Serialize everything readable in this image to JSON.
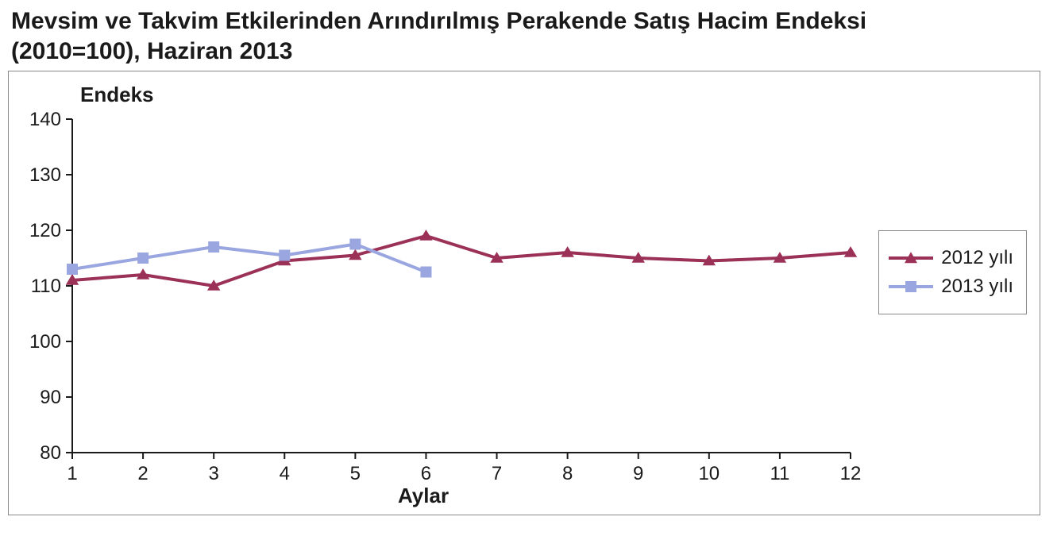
{
  "title_line1": "Mevsim ve Takvim Etkilerinden Arındırılmış Perakende Satış Hacim Endeksi",
  "title_line2": "(2010=100), Haziran 2013",
  "chart": {
    "type": "line",
    "y_axis_title": "Endeks",
    "x_axis_title": "Aylar",
    "ylim": [
      80,
      140
    ],
    "ytick_step": 10,
    "yticks": [
      80,
      90,
      100,
      110,
      120,
      130,
      140
    ],
    "xticks": [
      1,
      2,
      3,
      4,
      5,
      6,
      7,
      8,
      9,
      10,
      11,
      12
    ],
    "background_color": "#ffffff",
    "axis_color": "#1a1a1a",
    "tick_length": 8,
    "line_width": 4,
    "marker_size": 14,
    "title_fontsize": 30,
    "axis_title_fontsize": 26,
    "tick_fontsize": 24,
    "series": [
      {
        "name": "2012 yılı",
        "color": "#9b3156",
        "marker": "triangle",
        "values": [
          111,
          112,
          110,
          114.5,
          115.5,
          119,
          115,
          116,
          115,
          114.5,
          115,
          116
        ]
      },
      {
        "name": "2013 yılı",
        "color": "#9aa6e0",
        "marker": "square",
        "values": [
          113,
          115,
          117,
          115.5,
          117.5,
          112.5
        ]
      }
    ],
    "legend": {
      "border_color": "#888888",
      "fontsize": 24
    }
  }
}
